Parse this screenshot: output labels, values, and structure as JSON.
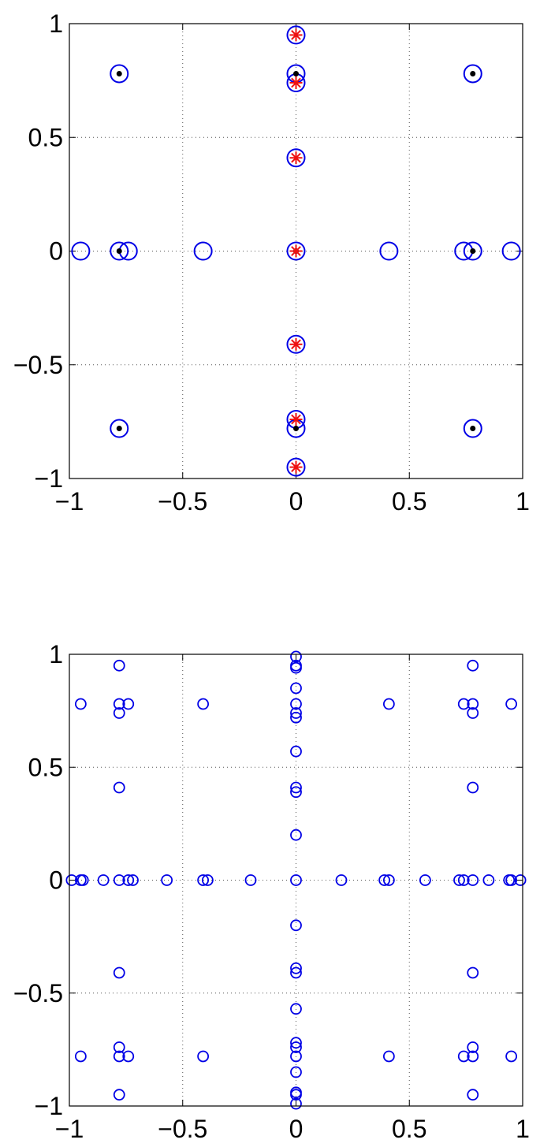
{
  "chart_data": [
    {
      "type": "scatter",
      "title": "",
      "xlabel": "",
      "ylabel": "",
      "xlim": [
        -1,
        1
      ],
      "ylim": [
        -1,
        1
      ],
      "grid": true,
      "xticks": [
        -1,
        -0.5,
        0,
        0.5,
        1
      ],
      "yticks": [
        -1,
        -0.5,
        0,
        0.5,
        1
      ],
      "xtick_labels": [
        "−1",
        "−0.5",
        "0",
        "0.5",
        "1"
      ],
      "ytick_labels": [
        "−1",
        "−0.5",
        "0",
        "0.5",
        "1"
      ],
      "series": [
        {
          "marker": "large-circle",
          "color": "#0000e6",
          "points": [
            [
              -0.78,
              0.78
            ],
            [
              0.78,
              0.78
            ],
            [
              0,
              0.95
            ],
            [
              0,
              0.78
            ],
            [
              0,
              0.74
            ],
            [
              0,
              0.41
            ],
            [
              -0.95,
              0
            ],
            [
              -0.78,
              0
            ],
            [
              -0.74,
              0
            ],
            [
              -0.41,
              0
            ],
            [
              0,
              0
            ],
            [
              0.41,
              0
            ],
            [
              0.74,
              0
            ],
            [
              0.78,
              0
            ],
            [
              0.95,
              0
            ],
            [
              0,
              -0.41
            ],
            [
              -0.78,
              -0.78
            ],
            [
              0.78,
              -0.78
            ],
            [
              0,
              -0.74
            ],
            [
              0,
              -0.78
            ],
            [
              0,
              -0.95
            ]
          ]
        },
        {
          "marker": "dot",
          "color": "#000000",
          "points": [
            [
              -0.78,
              0.78
            ],
            [
              0.78,
              0.78
            ],
            [
              0,
              0.78
            ],
            [
              -0.78,
              0
            ],
            [
              0,
              0
            ],
            [
              0.78,
              0
            ],
            [
              -0.78,
              -0.78
            ],
            [
              0.78,
              -0.78
            ],
            [
              0,
              -0.78
            ]
          ]
        },
        {
          "marker": "asterisk",
          "color": "#ee1111",
          "points": [
            [
              0,
              0.95
            ],
            [
              0,
              0.74
            ],
            [
              0,
              0.41
            ],
            [
              0,
              0
            ],
            [
              0,
              -0.41
            ],
            [
              0,
              -0.74
            ],
            [
              0,
              -0.95
            ]
          ]
        }
      ]
    },
    {
      "type": "scatter",
      "title": "",
      "xlabel": "",
      "ylabel": "",
      "xlim": [
        -1,
        1
      ],
      "ylim": [
        -1,
        1
      ],
      "grid": true,
      "xticks": [
        -1,
        -0.5,
        0,
        0.5,
        1
      ],
      "yticks": [
        -1,
        -0.5,
        0,
        0.5,
        1
      ],
      "xtick_labels": [
        "−1",
        "−0.5",
        "0",
        "0.5",
        "1"
      ],
      "ytick_labels": [
        "−1",
        "−0.5",
        "0",
        "0.5",
        "1"
      ],
      "series": [
        {
          "marker": "small-circle",
          "color": "#0000e6",
          "points": [
            [
              -0.95,
              0.78
            ],
            [
              -0.78,
              0.95
            ],
            [
              -0.78,
              0.78
            ],
            [
              -0.74,
              0.78
            ],
            [
              -0.78,
              0.74
            ],
            [
              -0.41,
              0.78
            ],
            [
              0.41,
              0.78
            ],
            [
              0.74,
              0.78
            ],
            [
              0.78,
              0.78
            ],
            [
              0.78,
              0.74
            ],
            [
              0.78,
              0.95
            ],
            [
              0.95,
              0.78
            ],
            [
              -0.78,
              0.41
            ],
            [
              0.78,
              0.41
            ],
            [
              0,
              0.99
            ],
            [
              0,
              0.95
            ],
            [
              0,
              0.94
            ],
            [
              0,
              0.85
            ],
            [
              0,
              0.78
            ],
            [
              0,
              0.74
            ],
            [
              0,
              0.72
            ],
            [
              0,
              0.57
            ],
            [
              0,
              0.41
            ],
            [
              0,
              0.39
            ],
            [
              0,
              0.2
            ],
            [
              -0.99,
              0
            ],
            [
              -0.95,
              0
            ],
            [
              -0.94,
              0
            ],
            [
              -0.85,
              0
            ],
            [
              -0.78,
              0
            ],
            [
              -0.74,
              0
            ],
            [
              -0.72,
              0
            ],
            [
              -0.57,
              0
            ],
            [
              -0.41,
              0
            ],
            [
              -0.39,
              0
            ],
            [
              -0.2,
              0
            ],
            [
              0,
              0
            ],
            [
              0.2,
              0
            ],
            [
              0.39,
              0
            ],
            [
              0.41,
              0
            ],
            [
              0.57,
              0
            ],
            [
              0.72,
              0
            ],
            [
              0.74,
              0
            ],
            [
              0.78,
              0
            ],
            [
              0.85,
              0
            ],
            [
              0.94,
              0
            ],
            [
              0.95,
              0
            ],
            [
              0.99,
              0
            ],
            [
              0,
              -0.2
            ],
            [
              0,
              -0.39
            ],
            [
              0,
              -0.41
            ],
            [
              0,
              -0.57
            ],
            [
              0,
              -0.72
            ],
            [
              0,
              -0.74
            ],
            [
              0,
              -0.78
            ],
            [
              0,
              -0.85
            ],
            [
              0,
              -0.94
            ],
            [
              0,
              -0.95
            ],
            [
              0,
              -0.99
            ],
            [
              -0.78,
              -0.41
            ],
            [
              0.78,
              -0.41
            ],
            [
              -0.95,
              -0.78
            ],
            [
              -0.78,
              -0.74
            ],
            [
              -0.78,
              -0.78
            ],
            [
              -0.74,
              -0.78
            ],
            [
              -0.78,
              -0.95
            ],
            [
              -0.41,
              -0.78
            ],
            [
              0.41,
              -0.78
            ],
            [
              0.74,
              -0.78
            ],
            [
              0.78,
              -0.78
            ],
            [
              0.78,
              -0.74
            ],
            [
              0.78,
              -0.95
            ],
            [
              0.95,
              -0.78
            ]
          ]
        }
      ]
    }
  ]
}
